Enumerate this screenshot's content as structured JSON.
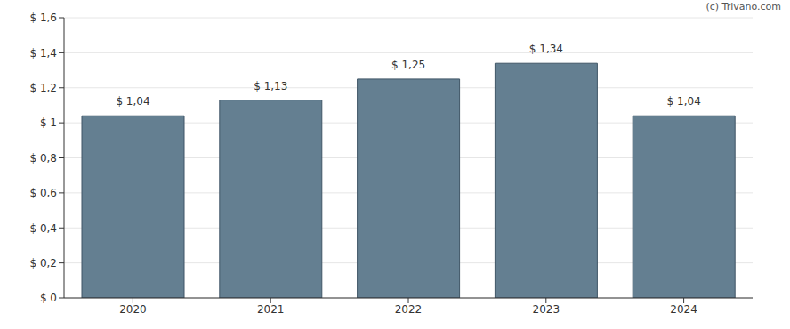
{
  "chart_data": {
    "type": "bar",
    "categories": [
      "2020",
      "2021",
      "2022",
      "2023",
      "2024"
    ],
    "values": [
      1.04,
      1.13,
      1.25,
      1.34,
      1.04
    ],
    "value_labels": [
      "$ 1,04",
      "$ 1,13",
      "$ 1,25",
      "$ 1,34",
      "$ 1,04"
    ],
    "color": "#647f91",
    "ylim": [
      0,
      1.6
    ],
    "yticks": [
      {
        "value": 0,
        "label": "$ 0"
      },
      {
        "value": 0.2,
        "label": "$ 0,2"
      },
      {
        "value": 0.4,
        "label": "$ 0,4"
      },
      {
        "value": 0.6,
        "label": "$ 0,6"
      },
      {
        "value": 0.8,
        "label": "$ 0,8"
      },
      {
        "value": 1,
        "label": "$ 1"
      },
      {
        "value": 1.2,
        "label": "$ 1,2"
      },
      {
        "value": 1.4,
        "label": "$ 1,4"
      },
      {
        "value": 1.6,
        "label": "$ 1,6"
      }
    ],
    "grid": true,
    "data_labels": true,
    "annotations": [
      "(c) Trivano.com"
    ]
  }
}
